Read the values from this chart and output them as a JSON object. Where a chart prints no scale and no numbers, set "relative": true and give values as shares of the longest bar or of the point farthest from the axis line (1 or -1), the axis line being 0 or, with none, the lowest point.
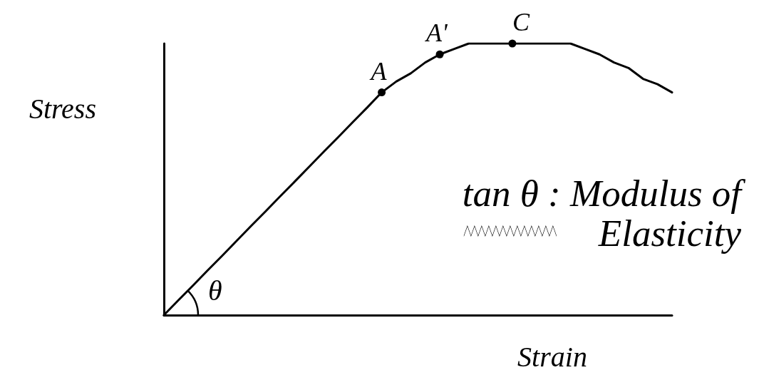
{
  "chart_data": {
    "type": "line",
    "relative": true,
    "xlabel": "Strain",
    "ylabel": "Stress",
    "categories": [
      null,
      null,
      null,
      null,
      null,
      null,
      null,
      null,
      null,
      null,
      null,
      null,
      null,
      null,
      null,
      null,
      null,
      null,
      null,
      null,
      null,
      null,
      null,
      null,
      null,
      null,
      null,
      null,
      null,
      null,
      null,
      null,
      null,
      null,
      null,
      null
    ],
    "series": [
      {
        "color": "#000000",
        "marker": "none",
        "values": [
          0,
          0.055,
          0.109,
          0.164,
          0.218,
          0.273,
          0.328,
          0.382,
          0.437,
          0.491,
          0.546,
          0.601,
          0.655,
          0.71,
          0.764,
          0.82,
          0.86,
          0.89,
          0.93,
          0.96,
          0.98,
          1,
          1,
          1,
          1,
          1,
          1,
          1,
          1,
          0.98,
          0.96,
          0.93,
          0.91,
          0.87,
          0.85,
          0.82
        ]
      }
    ],
    "annotations": [
      {
        "text": "A",
        "y": 0.82
      },
      {
        "text": "A'",
        "y": 0.96
      },
      {
        "text": "C",
        "y": 1
      },
      "θ",
      "tan θ : Modulus of Elasticity"
    ]
  }
}
